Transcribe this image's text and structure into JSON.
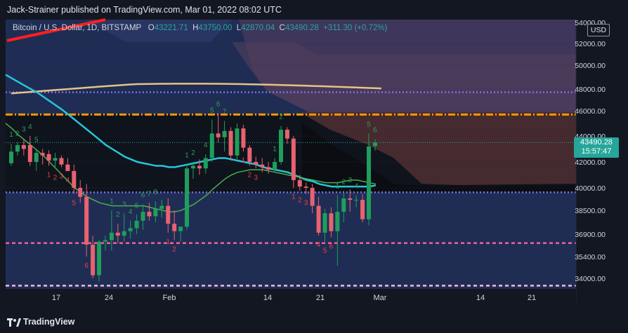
{
  "header": {
    "publisher_line": "Jack-Strainer published on TradingView.com, Mar 01, 2022 08:02 UTC"
  },
  "legend": {
    "symbol": "Bitcoin / U.S. Dollar, 1D, BITSTAMP",
    "o_label": "O",
    "o_value": "43221.71",
    "h_label": "H",
    "h_value": "43750.00",
    "l_label": "L",
    "l_value": "42870.04",
    "c_label": "C",
    "c_value": "43490.28",
    "change": "+311.30 (+0.72%)"
  },
  "currency_button": "USD",
  "last_price": {
    "price": "43490.28",
    "countdown": "15:57:47"
  },
  "footer": {
    "brand": "TradingView"
  },
  "colors": {
    "bg": "#131722",
    "up": "#26a69a",
    "down": "#ef5350",
    "ema_fast": "#26c6da",
    "ema_slow": "#e6c385",
    "ma_green": "#4caf50",
    "band_blue": "#3a4d8c",
    "band_purple": "#5c4a66",
    "band_brown": "#6b3f3a",
    "level_orange": "#ff9800",
    "level_pink": "#f06292",
    "level_violet": "#7c6ff0"
  },
  "chart_data": {
    "type": "candlestick",
    "title": "Bitcoin / U.S. Dollar, 1D, BITSTAMP",
    "y_ticks": [
      54000,
      52000,
      50000,
      48000,
      46000,
      44000,
      42000,
      40000,
      38500,
      36900,
      35400,
      34000
    ],
    "y_tick_labels": [
      "54000.00",
      "52000.00",
      "50000.00",
      "48000.00",
      "46000.00",
      "44000.00",
      "42000.00",
      "40000.00",
      "38500.00",
      "36900.00",
      "35400.00",
      "34000.00"
    ],
    "x_ticks": [
      "17",
      "24",
      "Feb",
      "14",
      "21",
      "Mar",
      "14",
      "21"
    ],
    "horizontal_levels": [
      {
        "price": 47700,
        "color": "violet",
        "style": "dotted"
      },
      {
        "price": 45700,
        "color": "orange",
        "style": "dash-dot"
      },
      {
        "price": 39700,
        "color": "violet",
        "style": "dotted"
      },
      {
        "price": 36300,
        "color": "pink",
        "style": "dashed"
      },
      {
        "price": 33500,
        "color": "pink-white",
        "style": "dashed"
      }
    ],
    "candles": [
      {
        "o": 41900,
        "h": 43400,
        "l": 41700,
        "c": 42800
      },
      {
        "o": 42800,
        "h": 43500,
        "l": 42500,
        "c": 43300
      },
      {
        "o": 43300,
        "h": 43800,
        "l": 42500,
        "c": 43000
      },
      {
        "o": 43300,
        "h": 44000,
        "l": 41700,
        "c": 42000
      },
      {
        "o": 42000,
        "h": 43000,
        "l": 41300,
        "c": 42700
      },
      {
        "o": 42700,
        "h": 43000,
        "l": 41800,
        "c": 42500
      },
      {
        "o": 42600,
        "h": 42900,
        "l": 41700,
        "c": 42100
      },
      {
        "o": 42100,
        "h": 42700,
        "l": 41500,
        "c": 42300
      },
      {
        "o": 42300,
        "h": 42500,
        "l": 41600,
        "c": 41800
      },
      {
        "o": 41800,
        "h": 42300,
        "l": 41300,
        "c": 41300
      },
      {
        "o": 41300,
        "h": 41800,
        "l": 39600,
        "c": 40000
      },
      {
        "o": 40000,
        "h": 40600,
        "l": 39000,
        "c": 39400
      },
      {
        "o": 39400,
        "h": 40300,
        "l": 35400,
        "c": 36200
      },
      {
        "o": 36200,
        "h": 36800,
        "l": 34000,
        "c": 34200
      },
      {
        "o": 34200,
        "h": 36500,
        "l": 33800,
        "c": 36400
      },
      {
        "o": 36400,
        "h": 36800,
        "l": 35800,
        "c": 36500
      },
      {
        "o": 36500,
        "h": 38500,
        "l": 35800,
        "c": 37000
      },
      {
        "o": 37000,
        "h": 37600,
        "l": 36300,
        "c": 36800
      },
      {
        "o": 36800,
        "h": 38300,
        "l": 36400,
        "c": 37100
      },
      {
        "o": 37100,
        "h": 37800,
        "l": 36600,
        "c": 37300
      },
      {
        "o": 37300,
        "h": 38200,
        "l": 36900,
        "c": 37800
      },
      {
        "o": 37800,
        "h": 38900,
        "l": 37200,
        "c": 38400
      },
      {
        "o": 38400,
        "h": 39000,
        "l": 37800,
        "c": 38100
      },
      {
        "o": 38100,
        "h": 39100,
        "l": 37700,
        "c": 38600
      },
      {
        "o": 38600,
        "h": 39200,
        "l": 38000,
        "c": 38800
      },
      {
        "o": 38800,
        "h": 39300,
        "l": 37000,
        "c": 37600
      },
      {
        "o": 37600,
        "h": 38500,
        "l": 36500,
        "c": 37100
      },
      {
        "o": 37100,
        "h": 37400,
        "l": 36400,
        "c": 37400
      },
      {
        "o": 37400,
        "h": 41800,
        "l": 37200,
        "c": 41500
      },
      {
        "o": 41500,
        "h": 42000,
        "l": 40700,
        "c": 41700
      },
      {
        "o": 41700,
        "h": 42200,
        "l": 41000,
        "c": 41500
      },
      {
        "o": 41500,
        "h": 42600,
        "l": 41100,
        "c": 42300
      },
      {
        "o": 42300,
        "h": 45300,
        "l": 42000,
        "c": 44200
      },
      {
        "o": 44200,
        "h": 45800,
        "l": 43500,
        "c": 43900
      },
      {
        "o": 43900,
        "h": 45200,
        "l": 42800,
        "c": 44400
      },
      {
        "o": 44400,
        "h": 44700,
        "l": 42100,
        "c": 42500
      },
      {
        "o": 42500,
        "h": 45000,
        "l": 42200,
        "c": 44600
      },
      {
        "o": 44600,
        "h": 44900,
        "l": 42800,
        "c": 43100
      },
      {
        "o": 43100,
        "h": 43300,
        "l": 41700,
        "c": 42000
      },
      {
        "o": 42000,
        "h": 42400,
        "l": 41500,
        "c": 41800
      },
      {
        "o": 41800,
        "h": 42300,
        "l": 41200,
        "c": 41600
      },
      {
        "o": 41600,
        "h": 42000,
        "l": 41100,
        "c": 41400
      },
      {
        "o": 41400,
        "h": 42300,
        "l": 41200,
        "c": 42000
      },
      {
        "o": 42000,
        "h": 44800,
        "l": 41800,
        "c": 44500
      },
      {
        "o": 44500,
        "h": 44700,
        "l": 43400,
        "c": 43800
      },
      {
        "o": 43800,
        "h": 44000,
        "l": 40000,
        "c": 40600
      },
      {
        "o": 40600,
        "h": 41000,
        "l": 39800,
        "c": 40100
      },
      {
        "o": 40100,
        "h": 40400,
        "l": 39600,
        "c": 40000
      },
      {
        "o": 40000,
        "h": 40300,
        "l": 38300,
        "c": 38800
      },
      {
        "o": 38800,
        "h": 39400,
        "l": 36800,
        "c": 37000
      },
      {
        "o": 37000,
        "h": 38600,
        "l": 36400,
        "c": 38300
      },
      {
        "o": 38300,
        "h": 38700,
        "l": 36700,
        "c": 37100
      },
      {
        "o": 37100,
        "h": 39500,
        "l": 34800,
        "c": 38400
      },
      {
        "o": 38400,
        "h": 39800,
        "l": 37700,
        "c": 39300
      },
      {
        "o": 39300,
        "h": 39900,
        "l": 38400,
        "c": 39200
      },
      {
        "o": 39200,
        "h": 39500,
        "l": 38700,
        "c": 39200
      },
      {
        "o": 39200,
        "h": 39600,
        "l": 37700,
        "c": 37900
      },
      {
        "o": 37900,
        "h": 44200,
        "l": 37500,
        "c": 43200
      },
      {
        "o": 43221.71,
        "h": 43750,
        "l": 42870.04,
        "c": 43490.28
      }
    ],
    "sequential_counts_green": [
      {
        "i": 0,
        "n": "1"
      },
      {
        "i": 1,
        "n": "2"
      },
      {
        "i": 2,
        "n": "3"
      },
      {
        "i": 3,
        "n": "4"
      },
      {
        "i": 4,
        "n": "5"
      },
      {
        "i": 16,
        "n": "1"
      },
      {
        "i": 17,
        "n": "2"
      },
      {
        "i": 18,
        "n": "3"
      },
      {
        "i": 19,
        "n": "4"
      },
      {
        "i": 20,
        "n": "5"
      },
      {
        "i": 21,
        "n": "6"
      },
      {
        "i": 22,
        "n": "7"
      },
      {
        "i": 23,
        "n": "8"
      },
      {
        "i": 28,
        "n": "1"
      },
      {
        "i": 29,
        "n": "2"
      },
      {
        "i": 31,
        "n": "4"
      },
      {
        "i": 32,
        "n": "5"
      },
      {
        "i": 33,
        "n": "6"
      },
      {
        "i": 34,
        "n": "7"
      },
      {
        "i": 42,
        "n": "1"
      },
      {
        "i": 43,
        "n": "2"
      },
      {
        "i": 52,
        "n": "1"
      },
      {
        "i": 53,
        "n": "2"
      },
      {
        "i": 54,
        "n": "3"
      },
      {
        "i": 55,
        "n": "4"
      },
      {
        "i": 57,
        "n": "5"
      },
      {
        "i": 58,
        "n": "6"
      }
    ],
    "sequential_counts_red": [
      {
        "i": 6,
        "n": "1"
      },
      {
        "i": 7,
        "n": "2"
      },
      {
        "i": 8,
        "n": "3"
      },
      {
        "i": 9,
        "n": "4"
      },
      {
        "i": 10,
        "n": "5"
      },
      {
        "i": 12,
        "n": "6"
      },
      {
        "i": 25,
        "n": "1"
      },
      {
        "i": 26,
        "n": "2"
      },
      {
        "i": 37,
        "n": "1"
      },
      {
        "i": 38,
        "n": "2"
      },
      {
        "i": 39,
        "n": "3"
      },
      {
        "i": 45,
        "n": "1"
      },
      {
        "i": 46,
        "n": "2"
      },
      {
        "i": 47,
        "n": "3"
      },
      {
        "i": 49,
        "n": "4"
      },
      {
        "i": 50,
        "n": "5"
      },
      {
        "i": 51,
        "n": "6"
      }
    ]
  }
}
